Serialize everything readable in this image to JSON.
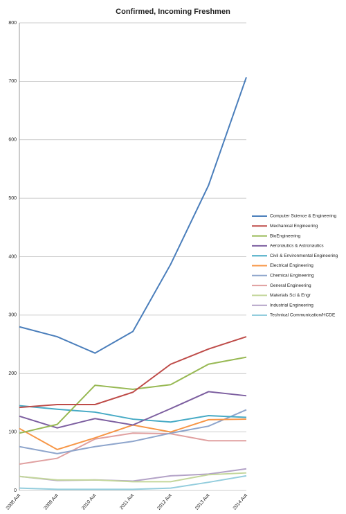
{
  "chart_data": {
    "type": "line",
    "title": "Confirmed, Incoming Freshmen",
    "categories": [
      "2008 Aut",
      "2009 Aut",
      "2010 Aut",
      "2011 Aut",
      "2012 Aut",
      "2013 Aut",
      "2014 Aut"
    ],
    "ylim": [
      0,
      800
    ],
    "yticks": [
      0,
      100,
      200,
      300,
      400,
      500,
      600,
      700,
      800
    ],
    "grid": true,
    "legend": "right",
    "series": [
      {
        "name": "Computer Science & Engineering",
        "color": "#4a7ebb",
        "values": [
          280,
          263,
          235,
          272,
          387,
          522,
          707
        ]
      },
      {
        "name": "Mechanical Engineering",
        "color": "#be4b48",
        "values": [
          142,
          147,
          147,
          168,
          216,
          242,
          263
        ]
      },
      {
        "name": "BioEngineering",
        "color": "#98b954",
        "values": [
          98,
          113,
          180,
          173,
          181,
          216,
          228
        ]
      },
      {
        "name": "Aeronautics & Astronautics",
        "color": "#7d5fa0",
        "values": [
          127,
          107,
          123,
          112,
          140,
          169,
          162
        ]
      },
      {
        "name": "Civil & Environmental Engineering",
        "color": "#46aac5",
        "values": [
          145,
          139,
          134,
          122,
          117,
          128,
          125
        ]
      },
      {
        "name": "Electrical Engineering",
        "color": "#f79646",
        "values": [
          106,
          70,
          90,
          112,
          100,
          121,
          122
        ]
      },
      {
        "name": "Chemical Engineering",
        "color": "#8ea5cc",
        "values": [
          75,
          63,
          75,
          84,
          98,
          110,
          138
        ]
      },
      {
        "name": "General Engineering",
        "color": "#e0a0a0",
        "values": [
          45,
          55,
          88,
          98,
          97,
          85,
          85
        ]
      },
      {
        "name": "Materials Sci & Engr",
        "color": "#c3d69b",
        "values": [
          24,
          18,
          18,
          15,
          15,
          27,
          30
        ]
      },
      {
        "name": "Industrial Engineering",
        "color": "#b3a2c7",
        "values": [
          24,
          17,
          18,
          16,
          25,
          28,
          37
        ]
      },
      {
        "name": "Technical Communication/HCDE",
        "color": "#93cddd",
        "values": [
          4,
          2,
          2,
          2,
          4,
          14,
          25
        ]
      }
    ]
  }
}
